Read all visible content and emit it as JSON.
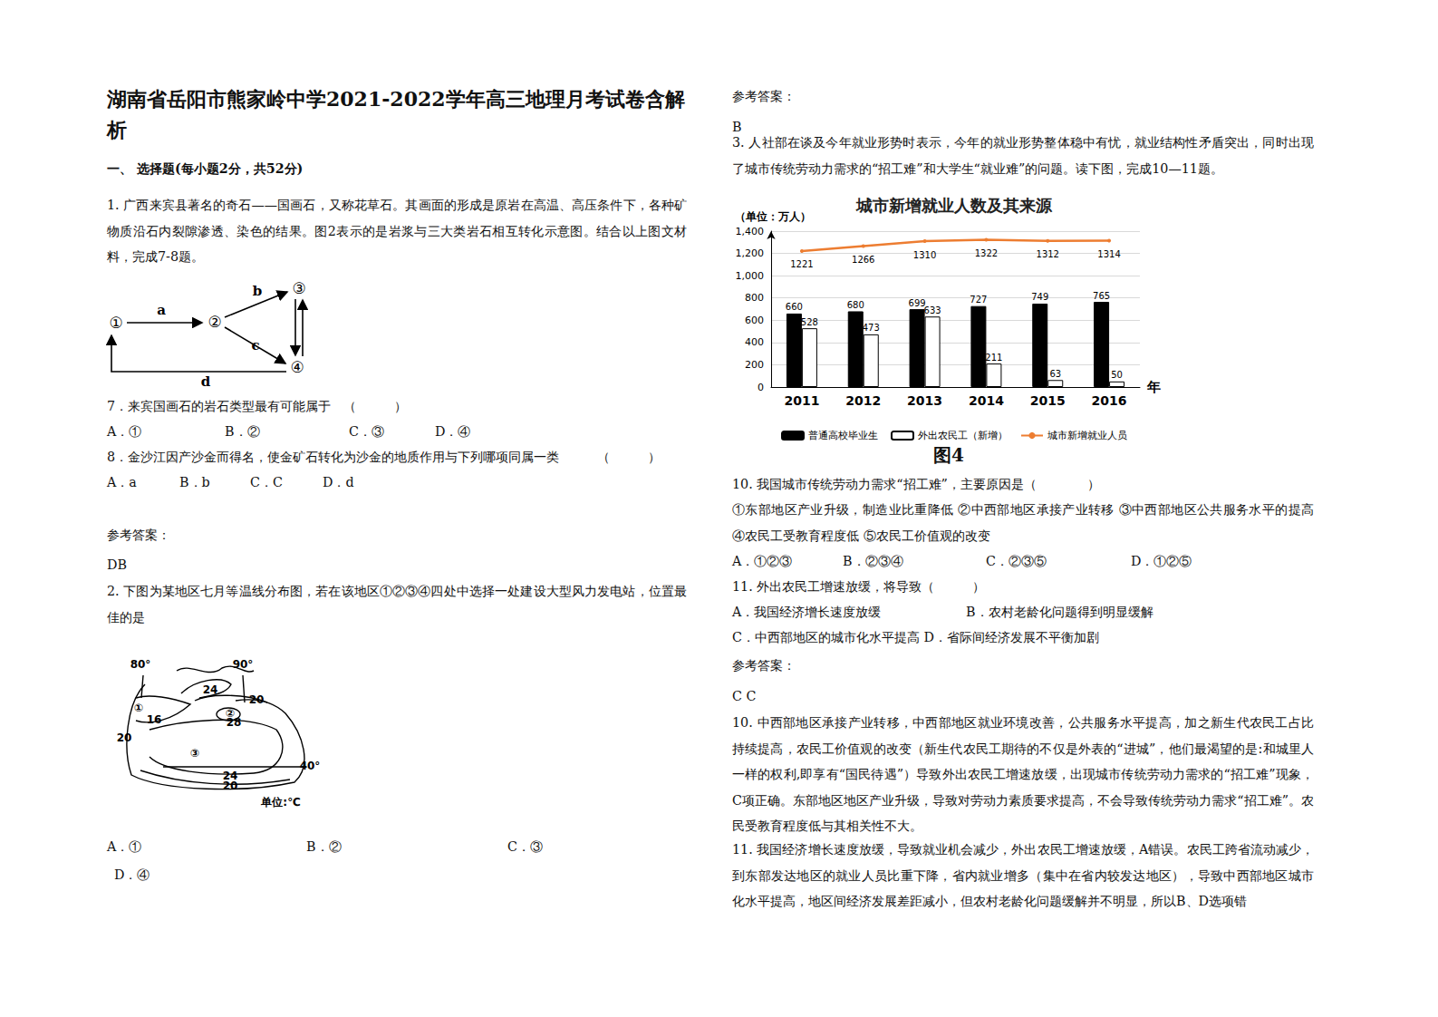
{
  "header": {
    "title": "湖南省岳阳市熊家岭中学2021-2022学年高三地理月考试卷含解析"
  },
  "section": "一、 选择题(每小题2分，共52分)",
  "q1": {
    "stem": "1. 广西来宾县著名的奇石——国画石，又称花草石。其画面的形成是原岩在高温、高压条件下，各种矿物质沿石内裂隙渗透、染色的结果。图2表示的是岩浆与三大类岩石相互转化示意图。结合以上图文材料，完成7-8题。",
    "diagram": {
      "nodes": [
        "①",
        "②",
        "③",
        "④"
      ],
      "edges": [
        "a",
        "b",
        "c",
        "d"
      ]
    },
    "q7": {
      "stem": "7．来宾国画石的岩石类型最有可能属于　（　　　）",
      "options": [
        "A．①",
        "B．②",
        "C．③",
        "D．④"
      ]
    },
    "q8": {
      "stem": "8．金沙江因产沙金而得名，使金矿石转化为沙金的地质作用与下列哪项同属一类　　　（　　　）",
      "options": [
        "A．a",
        "B．b",
        "C．C",
        "D．d"
      ]
    },
    "answer_label": "参考答案：",
    "answer": "DB"
  },
  "q2": {
    "stem": "2. 下图为某地区七月等温线分布图，若在该地区①②③④四处中选择一处建设大型风力发电站，位置最佳的是",
    "map": {
      "labels": [
        "80°",
        "90°",
        "24",
        "20",
        "①",
        "16",
        "②",
        "28",
        "20",
        "③",
        "40°",
        "24",
        "20",
        "单位:℃"
      ]
    },
    "options": [
      "A．①",
      "B．②",
      "C．③",
      "D．④"
    ],
    "answer_label": "参考答案：",
    "answer": "B"
  },
  "q3": {
    "stem": "3. 人社部在谈及今年就业形势时表示，今年的就业形势整体稳中有忧，就业结构性矛盾突出，同时出现了城市传统劳动力需求的“招工难”和大学生“就业难”的问题。读下图，完成10—11题。",
    "figure_caption": "图4",
    "q10": {
      "stem": "10. 我国城市传统劳动力需求“招工难”，主要原因是（　　　　）",
      "statements": "①东部地区产业升级，制造业比重降低 ②中西部地区承接产业转移 ③中西部地区公共服务水平的提高 ④农民工受教育程度低 ⑤农民工价值观的改变",
      "options": [
        "A．①②③",
        "B．②③④",
        "C．②③⑤",
        "D．①②⑤"
      ]
    },
    "q11": {
      "stem": "11. 外出农民工增速放缓，将导致（　　　）",
      "options": [
        "A．我国经济增长速度放缓",
        "B．农村老龄化问题得到明显缓解",
        "C．中西部地区的城市化水平提高 D．省际间经济发展不平衡加剧"
      ]
    },
    "answer_label": "参考答案：",
    "answer": "C C",
    "explanations": [
      "10. 中西部地区承接产业转移，中西部地区就业环境改善，公共服务水平提高，加之新生代农民工占比持续提高，农民工价值观的改变（新生代农民工期待的不仅是外表的“进城”，他们最渴望的是:和城里人一样的权利,即享有“国民待遇”）导致外出农民工增速放缓，出现城市传统劳动力需求的“招工难”现象，C项正确。东部地区地区产业升级，导致对劳动力素质要求提高，不会导致传统劳动力需求“招工难”。农民受教育程度低与其相关性不大。",
      "11. 我国经济增长速度放缓，导致就业机会减少，外出农民工增速放缓，A错误。农民工跨省流动减少，到东部发达地区的就业人员比重下降，省内就业增多（集中在省内较发达地区），导致中西部地区城市化水平提高，地区间经济发展差距减小，但农村老龄化问题缓解并不明显，所以B、D选项错"
    ]
  },
  "chart_data": {
    "type": "bar",
    "title": "城市新增就业人数及其来源",
    "y_label": "（单位：万人）",
    "x_label": "年",
    "categories": [
      "2011",
      "2012",
      "2013",
      "2014",
      "2015",
      "2016"
    ],
    "series": [
      {
        "name": "普通高校毕业生",
        "type": "bar",
        "color": "#000000",
        "values": [
          660,
          680,
          699,
          727,
          749,
          765
        ]
      },
      {
        "name": "外出农民工（新增）",
        "type": "bar",
        "color": "#ffffff",
        "values": [
          528,
          473,
          633,
          211,
          63,
          50
        ]
      },
      {
        "name": "城市新增就业人员",
        "type": "line",
        "color": "#ed7d31",
        "values": [
          1221,
          1266,
          1310,
          1322,
          1312,
          1314
        ]
      }
    ],
    "ylim": [
      0,
      1400
    ],
    "yticks": [
      0,
      200,
      400,
      600,
      800,
      1000,
      1200,
      1400
    ],
    "grid": true,
    "legend": "bottom",
    "data_labels": true
  }
}
